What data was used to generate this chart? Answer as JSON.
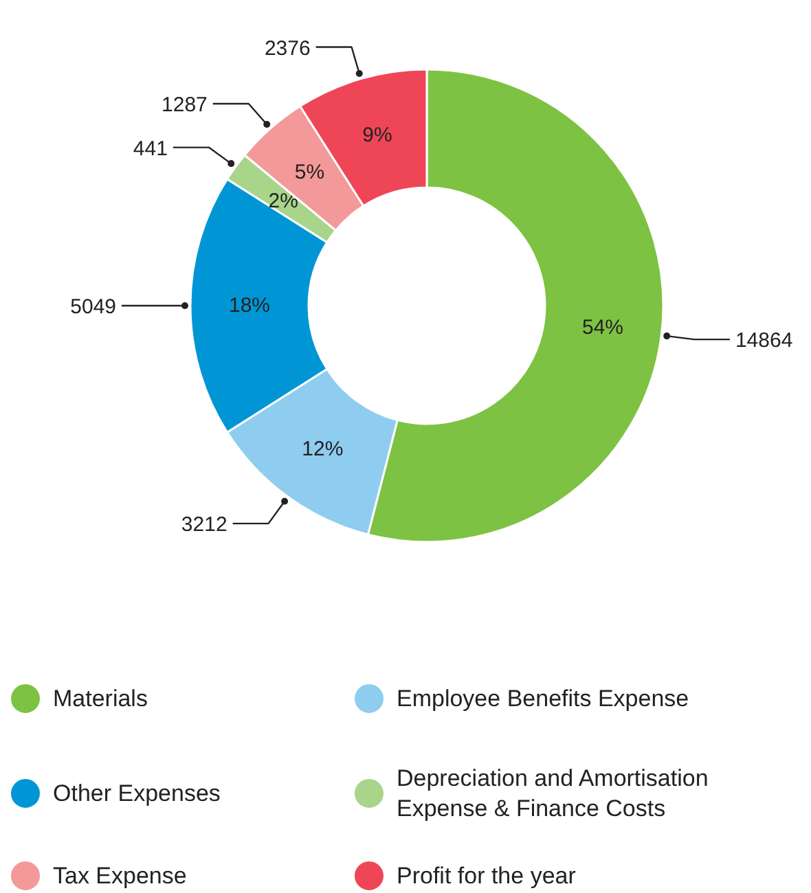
{
  "chart_data": {
    "type": "donut",
    "categories": [
      "Materials",
      "Employee Benefits Expense",
      "Other Expenses",
      "Depreciation and Amortisation Expense & Finance Costs",
      "Tax Expense",
      "Profit for the year"
    ],
    "values": [
      54,
      12,
      18,
      2,
      5,
      9
    ],
    "annotations": [
      "14864",
      "3212",
      "5049",
      "441",
      "1287",
      "2376"
    ],
    "colors": [
      "#7dc242",
      "#8ecdf0",
      "#0096d6",
      "#a8d58a",
      "#f4999a",
      "#ef4657"
    ],
    "value_labels": [
      "54%",
      "12%",
      "18%",
      "2%",
      "5%",
      "9%"
    ],
    "legend": "bottom"
  }
}
